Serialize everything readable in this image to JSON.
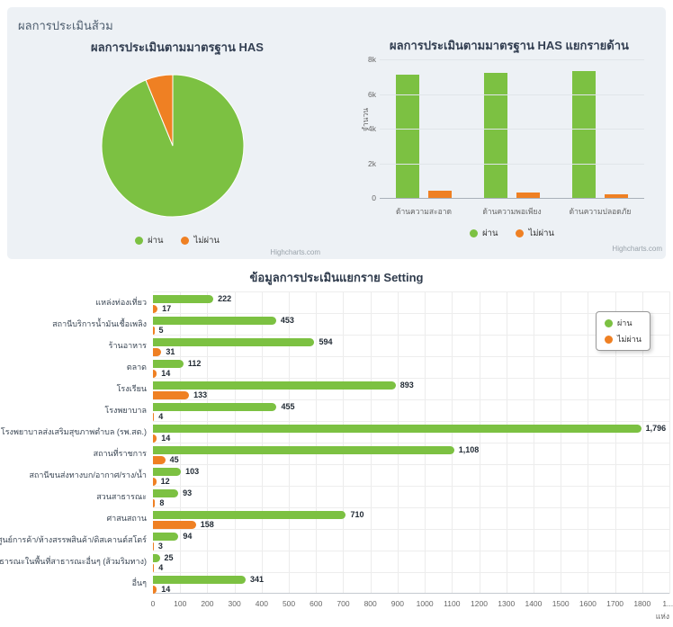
{
  "panel": {
    "title": "ผลการประเมินส้วม"
  },
  "colors": {
    "pass": "#7cc142",
    "fail": "#ef8023"
  },
  "credits": "Highcharts.com",
  "chart_data": [
    {
      "type": "pie",
      "title": "ผลการประเมินตามมาตรฐาน HAS",
      "legend_position": "bottom",
      "slices": [
        {
          "name": "ผ่าน",
          "pct": 93.8,
          "color_key": "pass"
        },
        {
          "name": "ไม่ผ่าน",
          "pct": 6.2,
          "color_key": "fail"
        }
      ]
    },
    {
      "type": "bar",
      "title": "ผลการประเมินตามมาตรฐาน HAS แยกรายด้าน",
      "categories": [
        "ด้านความสะอาด",
        "ด้านความพอเพียง",
        "ด้านความปลอดภัย"
      ],
      "series": [
        {
          "name": "ผ่าน",
          "color_key": "pass",
          "values": [
            7100,
            7200,
            7300
          ]
        },
        {
          "name": "ไม่ผ่าน",
          "color_key": "fail",
          "values": [
            400,
            300,
            200
          ]
        }
      ],
      "values_estimated": true,
      "ylabel": "จำนวน",
      "yticks": [
        "0",
        "2k",
        "4k",
        "6k",
        "8k"
      ],
      "ylim": [
        0,
        8000
      ],
      "grid": "horizontal",
      "legend_position": "bottom"
    },
    {
      "type": "bar-horizontal",
      "title": "ข้อมูลการประเมินแยกราย Setting",
      "categories": [
        "แหล่งท่องเที่ยว",
        "สถานีบริการน้ำมันเชื้อเพลิง",
        "ร้านอาหาร",
        "ตลาด",
        "โรงเรียน",
        "โรงพยาบาล",
        "โรงพยาบาลส่งเสริมสุขภาพตำบล (รพ.สต.)",
        "สถานที่ราชการ",
        "สถานีขนส่งทางบก/อากาศ/ราง/น้ำ",
        "สวนสาธารณะ",
        "ศาสนสถาน",
        "ศูนย์การค้า/ห้างสรรพสินค้า/ดิสเคานต์สโตร์",
        "ส้วมสาธารณะในพื้นที่สาธารณะอื่นๆ (ส้วมริมทาง)",
        "อื่นๆ"
      ],
      "series": [
        {
          "name": "ผ่าน",
          "color_key": "pass",
          "values": [
            222,
            453,
            594,
            112,
            893,
            455,
            1796,
            1108,
            103,
            93,
            710,
            94,
            25,
            341
          ],
          "labels": [
            "222",
            "453",
            "594",
            "112",
            "893",
            "455",
            "1,796",
            "1,108",
            "103",
            "93",
            "710",
            "94",
            "25",
            "341"
          ]
        },
        {
          "name": "ไม่ผ่าน",
          "color_key": "fail",
          "values": [
            17,
            5,
            31,
            14,
            133,
            4,
            14,
            45,
            12,
            8,
            158,
            3,
            4,
            14
          ],
          "labels": [
            "17",
            "5",
            "31",
            "14",
            "133",
            "4",
            "14",
            "45",
            "12",
            "8",
            "158",
            "3",
            "4",
            "14"
          ]
        }
      ],
      "xticks": [
        "0",
        "100",
        "200",
        "300",
        "400",
        "500",
        "600",
        "700",
        "800",
        "900",
        "1000",
        "1100",
        "1200",
        "1300",
        "1400",
        "1500",
        "1600",
        "1700",
        "1800",
        "1..."
      ],
      "xlim": [
        0,
        1900
      ],
      "xlabel": "แห่ง",
      "grid": "vertical",
      "legend_position": "top-right-box"
    }
  ]
}
